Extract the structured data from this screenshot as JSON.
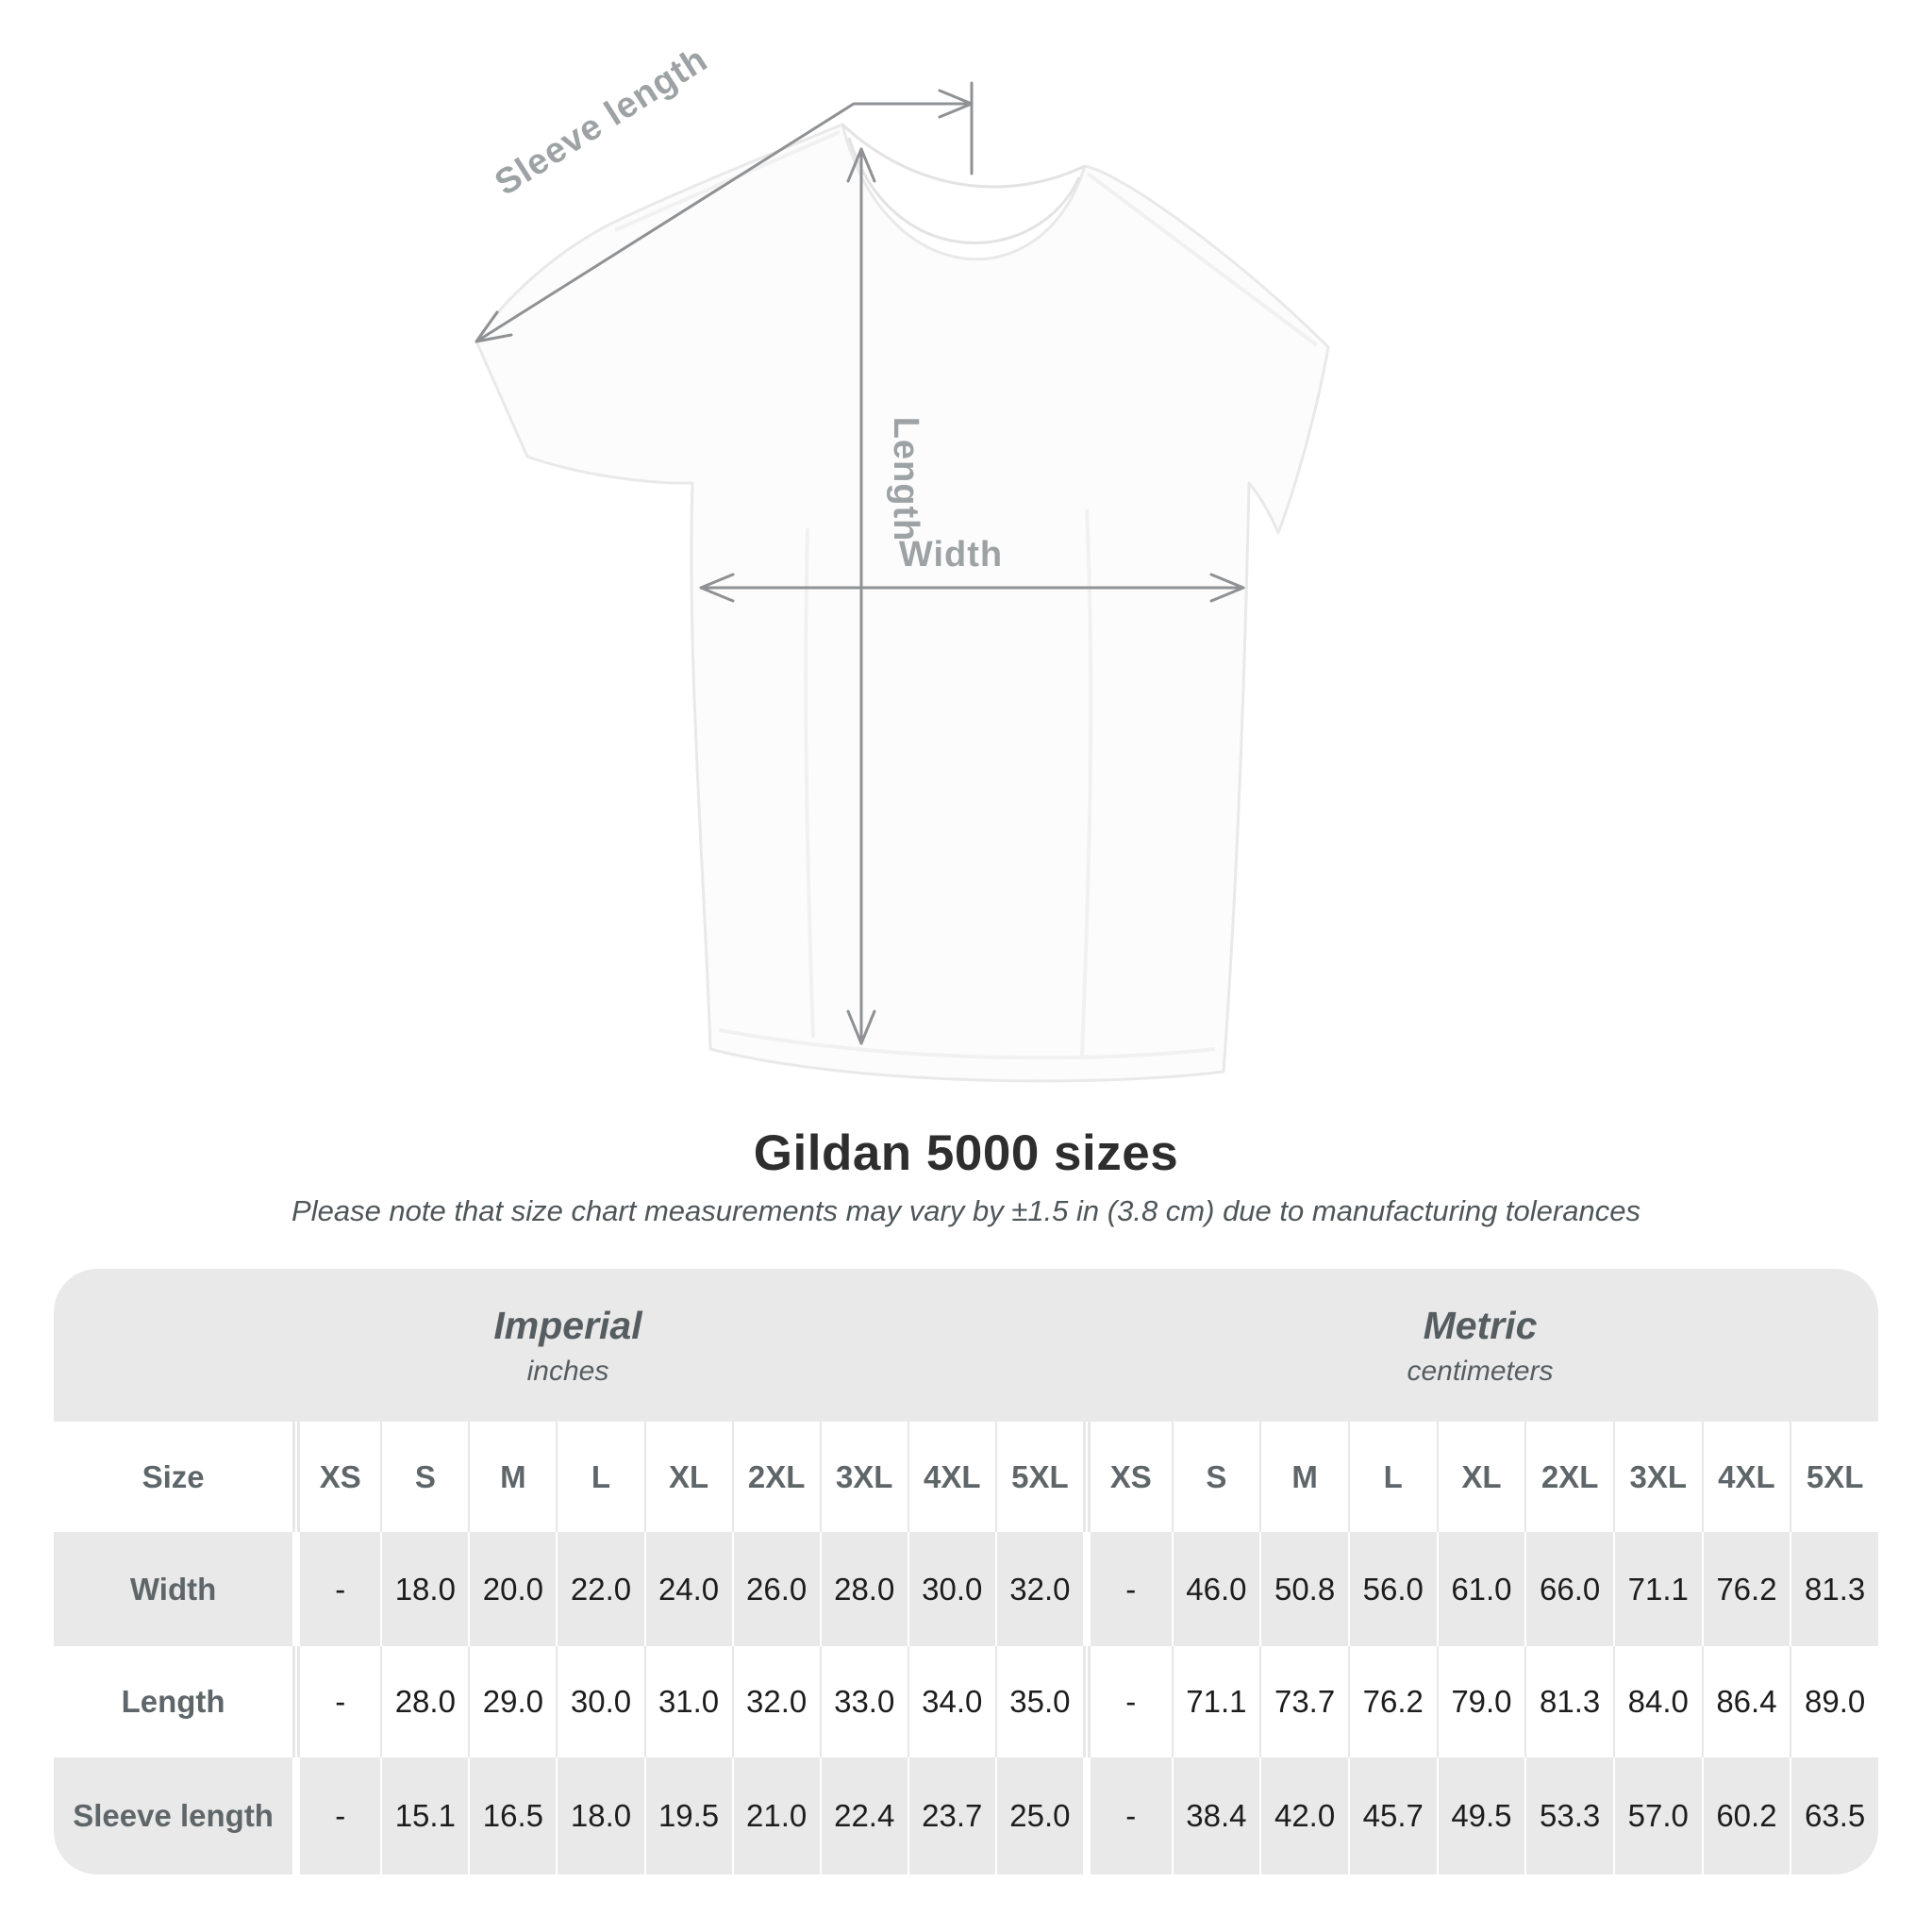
{
  "diagram": {
    "sleeve_length_label": "Sleeve length",
    "length_label": "Length",
    "width_label": "Width"
  },
  "title": "Gildan 5000 sizes",
  "subtitle": "Please note that size chart measurements may vary by ±1.5 in (3.8 cm) due to manufacturing tolerances",
  "table": {
    "imperial": {
      "title": "Imperial",
      "subtitle": "inches"
    },
    "metric": {
      "title": "Metric",
      "subtitle": "centimeters"
    },
    "size_column_header": "Size",
    "sizes": [
      "XS",
      "S",
      "M",
      "L",
      "XL",
      "2XL",
      "3XL",
      "4XL",
      "5XL"
    ],
    "rows": [
      {
        "label": "Width",
        "imperial": [
          "-",
          "18.0",
          "20.0",
          "22.0",
          "24.0",
          "26.0",
          "28.0",
          "30.0",
          "32.0"
        ],
        "metric": [
          "-",
          "46.0",
          "50.8",
          "56.0",
          "61.0",
          "66.0",
          "71.1",
          "76.2",
          "81.3"
        ]
      },
      {
        "label": "Length",
        "imperial": [
          "-",
          "28.0",
          "29.0",
          "30.0",
          "31.0",
          "32.0",
          "33.0",
          "34.0",
          "35.0"
        ],
        "metric": [
          "-",
          "71.1",
          "73.7",
          "76.2",
          "79.0",
          "81.3",
          "84.0",
          "86.4",
          "89.0"
        ]
      },
      {
        "label": "Sleeve length",
        "imperial": [
          "-",
          "15.1",
          "16.5",
          "18.0",
          "19.5",
          "21.0",
          "22.4",
          "23.7",
          "25.0"
        ],
        "metric": [
          "-",
          "38.4",
          "42.0",
          "45.7",
          "49.5",
          "53.3",
          "57.0",
          "60.2",
          "63.5"
        ]
      }
    ]
  },
  "chart_data": {
    "type": "table",
    "title": "Gildan 5000 sizes",
    "note": "Please note that size chart measurements may vary by ±1.5 in (3.8 cm) due to manufacturing tolerances",
    "unit_groups": [
      {
        "name": "Imperial",
        "unit": "inches"
      },
      {
        "name": "Metric",
        "unit": "centimeters"
      }
    ],
    "sizes": [
      "XS",
      "S",
      "M",
      "L",
      "XL",
      "2XL",
      "3XL",
      "4XL",
      "5XL"
    ],
    "measurements": [
      {
        "measure": "Width",
        "imperial_inches": [
          null,
          18.0,
          20.0,
          22.0,
          24.0,
          26.0,
          28.0,
          30.0,
          32.0
        ],
        "metric_centimeters": [
          null,
          46.0,
          50.8,
          56.0,
          61.0,
          66.0,
          71.1,
          76.2,
          81.3
        ]
      },
      {
        "measure": "Length",
        "imperial_inches": [
          null,
          28.0,
          29.0,
          30.0,
          31.0,
          32.0,
          33.0,
          34.0,
          35.0
        ],
        "metric_centimeters": [
          null,
          71.1,
          73.7,
          76.2,
          79.0,
          81.3,
          84.0,
          86.4,
          89.0
        ]
      },
      {
        "measure": "Sleeve length",
        "imperial_inches": [
          null,
          15.1,
          16.5,
          18.0,
          19.5,
          21.0,
          22.4,
          23.7,
          25.0
        ],
        "metric_centimeters": [
          null,
          38.4,
          42.0,
          45.7,
          49.5,
          53.3,
          57.0,
          60.2,
          63.5
        ]
      }
    ]
  },
  "colors": {
    "band_gray": "#e9e9e9",
    "row_alt_gray": "#e9e9e9",
    "dimension_line": "#8f9294",
    "dimension_label": "#9da2a5",
    "header_text": "#5f666a",
    "value_text": "#1d1d1d",
    "title_text": "#2e2e2e"
  }
}
